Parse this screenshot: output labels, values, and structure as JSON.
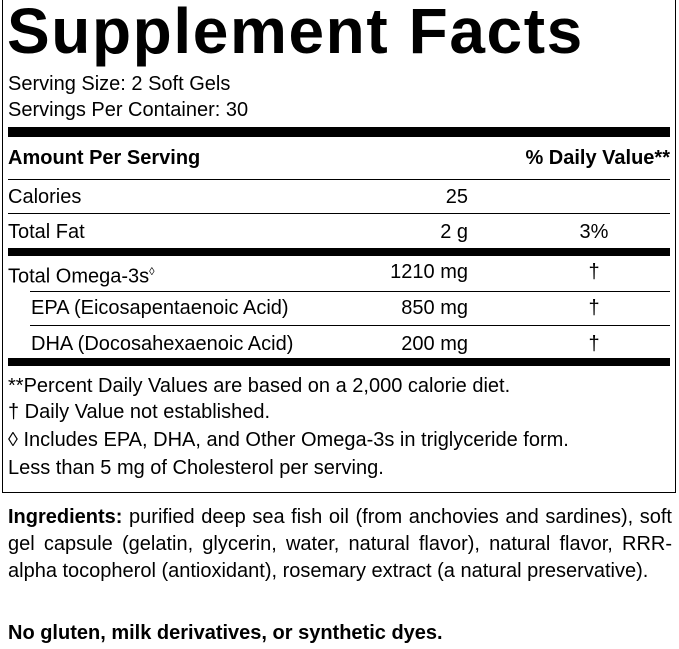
{
  "title": "Supplement Facts",
  "serving_size": "Serving Size: 2 Soft Gels",
  "servings_per_container": "Servings Per Container: 30",
  "header": {
    "amount": "Amount Per Serving",
    "daily_value": "% Daily Value**"
  },
  "rows": [
    {
      "name": "Calories",
      "amount": "25"
    },
    {
      "name": "Total Fat",
      "amount": "2 g",
      "dv": "3%"
    },
    {
      "name": "Total Omega-3s",
      "mark": "◊",
      "amount": "1210 mg",
      "dv": "†"
    },
    {
      "name": "EPA (Eicosapentaenoic Acid)",
      "amount": "850 mg",
      "dv": "†"
    },
    {
      "name": "DHA (Docosahexaenoic Acid)",
      "amount": "200 mg",
      "dv": "†"
    }
  ],
  "footnotes": [
    "**Percent Daily Values are based on a 2,000 calorie diet.",
    "† Daily Value not established.",
    "◊ Includes EPA, DHA, and Other Omega-3s in triglyceride form.",
    "Less than 5 mg of Cholesterol per serving."
  ],
  "ingredients": {
    "label": "Ingredients:",
    "text": "purified deep sea fish oil (from anchovies and sardines), soft gel capsule (gelatin, glycerin, water, natural flavor), natural flavor, RRR-alpha tocopherol (antioxidant), rosemary extract (a natural preservative)."
  },
  "allergen_note": "No gluten, milk derivatives, or synthetic dyes."
}
